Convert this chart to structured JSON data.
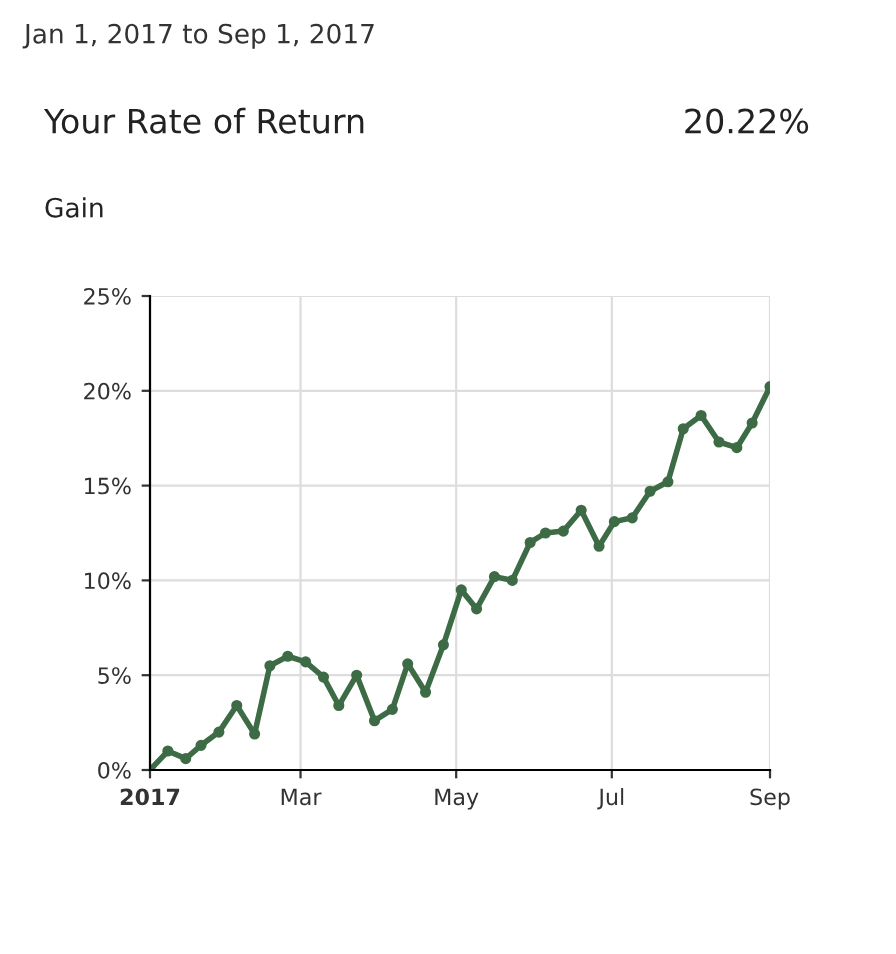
{
  "chart_data": {
    "type": "line",
    "title": "Jan 1, 2017 to Sep 1, 2017",
    "annotations": [
      "Your Rate of Return",
      "20.22%",
      "Gain"
    ],
    "x": [
      "2017-01-01",
      "2017-01-08",
      "2017-01-15",
      "2017-01-21",
      "2017-01-28",
      "2017-02-04",
      "2017-02-11",
      "2017-02-17",
      "2017-02-24",
      "2017-03-03",
      "2017-03-10",
      "2017-03-16",
      "2017-03-23",
      "2017-03-30",
      "2017-04-06",
      "2017-04-12",
      "2017-04-19",
      "2017-04-26",
      "2017-05-03",
      "2017-05-09",
      "2017-05-16",
      "2017-05-23",
      "2017-05-30",
      "2017-06-05",
      "2017-06-12",
      "2017-06-19",
      "2017-06-26",
      "2017-07-02",
      "2017-07-09",
      "2017-07-16",
      "2017-07-23",
      "2017-07-29",
      "2017-08-05",
      "2017-08-12",
      "2017-08-19",
      "2017-08-25",
      "2017-09-01"
    ],
    "series": [
      {
        "color": "#3d6b45",
        "values": [
          0,
          1.0,
          0.6,
          1.3,
          2.0,
          3.4,
          1.9,
          5.5,
          6.0,
          5.7,
          4.9,
          3.4,
          5.0,
          2.6,
          3.2,
          5.6,
          4.1,
          6.6,
          9.5,
          8.5,
          10.2,
          10.0,
          12.0,
          12.5,
          12.6,
          13.7,
          11.8,
          13.1,
          13.3,
          14.7,
          15.2,
          18.0,
          18.7,
          17.3,
          17.0,
          18.3,
          20.22
        ]
      }
    ],
    "xlim": [
      "2017-01-01",
      "2017-09-01"
    ],
    "xticks": [
      {
        "value": "2017-01-01",
        "label": "2017"
      },
      {
        "value": "2017-03-01",
        "label": "Mar"
      },
      {
        "value": "2017-05-01",
        "label": "May"
      },
      {
        "value": "2017-07-01",
        "label": "Jul"
      },
      {
        "value": "2017-09-01",
        "label": "Sep"
      }
    ],
    "ylim": [
      0,
      25
    ],
    "yticks": [
      {
        "value": 0,
        "label": "0%"
      },
      {
        "value": 5,
        "label": "5%"
      },
      {
        "value": 10,
        "label": "10%"
      },
      {
        "value": 15,
        "label": "15%"
      },
      {
        "value": 20,
        "label": "20%"
      },
      {
        "value": 25,
        "label": "25%"
      }
    ],
    "grid": true,
    "marker": "circle",
    "line_style": "solid",
    "legend": false
  }
}
